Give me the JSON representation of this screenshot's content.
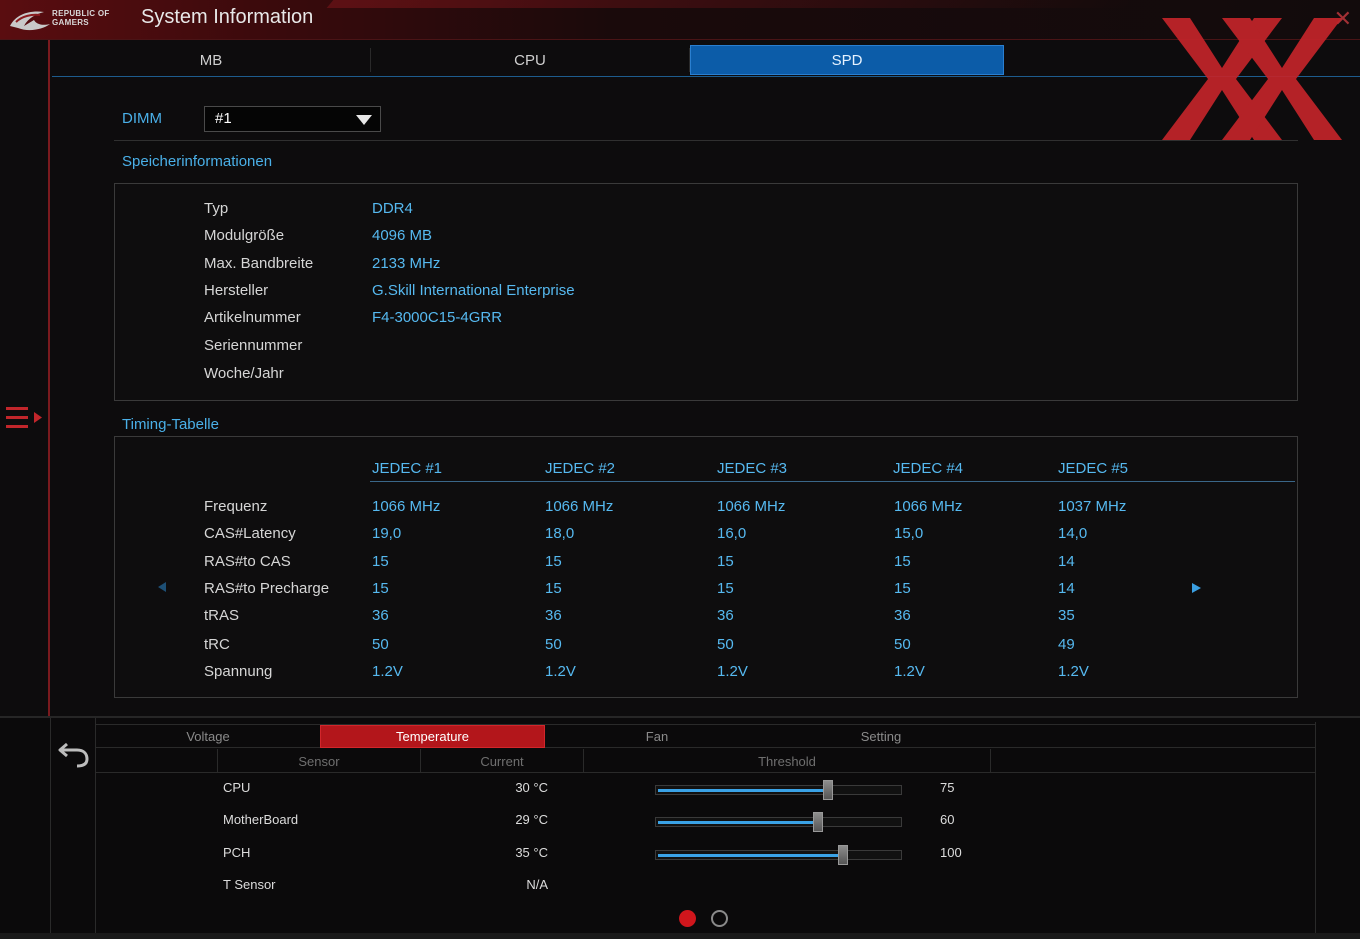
{
  "title": {
    "brand_line1": "REPUBLIC OF",
    "brand_line2": "GAMERS",
    "app_title": "System Information",
    "close_glyph": "✕"
  },
  "tabs": [
    {
      "label": "MB",
      "active": false
    },
    {
      "label": "CPU",
      "active": false
    },
    {
      "label": "SPD",
      "active": true
    }
  ],
  "dimm": {
    "label": "DIMM",
    "selected": "#1"
  },
  "memory_info": {
    "title": "Speicherinformationen",
    "rows": [
      {
        "label": "Typ",
        "value": "DDR4"
      },
      {
        "label": "Modulgröße",
        "value": "4096 MB"
      },
      {
        "label": "Max. Bandbreite",
        "value": "2133 MHz"
      },
      {
        "label": "Hersteller",
        "value": "G.Skill International Enterprise"
      },
      {
        "label": "Artikelnummer",
        "value": "F4-3000C15-4GRR"
      },
      {
        "label": "Seriennummer",
        "value": ""
      },
      {
        "label": "Woche/Jahr",
        "value": ""
      }
    ]
  },
  "timing": {
    "title": "Timing-Tabelle",
    "columns": [
      "JEDEC #1",
      "JEDEC #2",
      "JEDEC #3",
      "JEDEC #4",
      "JEDEC #5"
    ],
    "rows": [
      {
        "label": "Frequenz",
        "values": [
          "1066 MHz",
          "1066 MHz",
          "1066 MHz",
          "1066 MHz",
          "1037 MHz"
        ]
      },
      {
        "label": "CAS#Latency",
        "values": [
          "19,0",
          "18,0",
          "16,0",
          "15,0",
          "14,0"
        ]
      },
      {
        "label": "RAS#to CAS",
        "values": [
          "15",
          "15",
          "15",
          "15",
          "14"
        ]
      },
      {
        "label": "RAS#to Precharge",
        "values": [
          "15",
          "15",
          "15",
          "15",
          "14"
        ]
      },
      {
        "label": "tRAS",
        "values": [
          "36",
          "36",
          "36",
          "36",
          "35"
        ]
      },
      {
        "label": "tRC",
        "values": [
          "50",
          "50",
          "50",
          "50",
          "49"
        ]
      },
      {
        "label": "Spannung",
        "values": [
          "1.2V",
          "1.2V",
          "1.2V",
          "1.2V",
          "1.2V"
        ]
      }
    ]
  },
  "monitor": {
    "tabs": [
      {
        "label": "Voltage",
        "active": false
      },
      {
        "label": "Temperature",
        "active": true
      },
      {
        "label": "Fan",
        "active": false
      },
      {
        "label": "Setting",
        "active": false
      }
    ],
    "headers": {
      "sensor": "Sensor",
      "current": "Current",
      "threshold": "Threshold"
    },
    "sensors": [
      {
        "name": "CPU",
        "current": "30 °C",
        "threshold": "75",
        "threshold_fraction": 0.7
      },
      {
        "name": "MotherBoard",
        "current": "29 °C",
        "threshold": "60",
        "threshold_fraction": 0.66
      },
      {
        "name": "PCH",
        "current": "35 °C",
        "threshold": "100",
        "threshold_fraction": 0.76
      },
      {
        "name": "T Sensor",
        "current": "N/A",
        "threshold": "",
        "threshold_fraction": null
      }
    ],
    "page_indicator": {
      "count": 2,
      "active": 1
    }
  },
  "colors": {
    "accent_blue": "#56b9f0",
    "active_tab_blue": "#0c5ca8",
    "rog_red": "#b3161b"
  },
  "icons": [
    "rog-logo-icon",
    "close-icon",
    "menu-expand-icon",
    "scroll-left-icon",
    "scroll-right-icon",
    "back-icon"
  ]
}
